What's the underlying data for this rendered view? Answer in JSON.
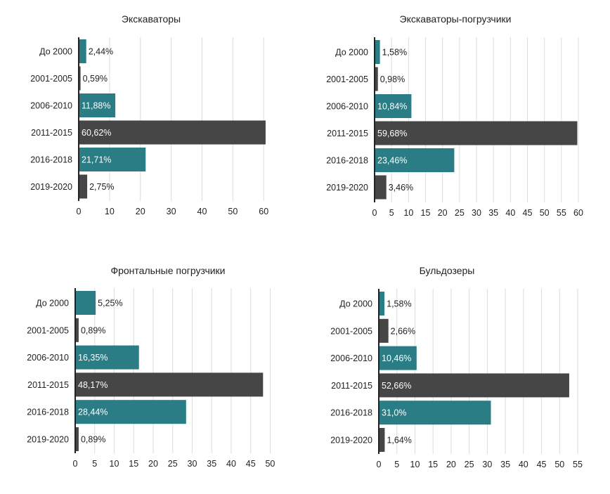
{
  "colors": {
    "teal": "#2a7d84",
    "dark": "#464646",
    "grid": "#dcdcdc",
    "axis": "#222222"
  },
  "chart_data": [
    {
      "type": "bar",
      "orientation": "horizontal",
      "title": "Экскаваторы",
      "categories": [
        "До 2000",
        "2001-2005",
        "2006-2010",
        "2011-2015",
        "2016-2018",
        "2019-2020"
      ],
      "values": [
        2.44,
        0.59,
        11.88,
        60.62,
        21.71,
        2.75
      ],
      "data_labels": [
        "2,44%",
        "0,59%",
        "11,88%",
        "60,62%",
        "21,71%",
        "2,75%"
      ],
      "xlim": [
        0,
        62
      ],
      "xticks": [
        0,
        10,
        20,
        30,
        40,
        50,
        60
      ],
      "grid": true
    },
    {
      "type": "bar",
      "orientation": "horizontal",
      "title": "Экскаваторы-погрузчики",
      "categories": [
        "До 2000",
        "2001-2005",
        "2006-2010",
        "2011-2015",
        "2016-2018",
        "2019-2020"
      ],
      "values": [
        1.58,
        0.98,
        10.84,
        59.68,
        23.46,
        3.46
      ],
      "data_labels": [
        "1,58%",
        "0,98%",
        "10,84%",
        "59,68%",
        "23,46%",
        "3,46%"
      ],
      "xlim": [
        0,
        60
      ],
      "xticks": [
        0,
        5,
        10,
        15,
        20,
        25,
        30,
        35,
        40,
        45,
        50,
        55,
        60
      ],
      "grid": true
    },
    {
      "type": "bar",
      "orientation": "horizontal",
      "title": "Фронтальные погрузчики",
      "categories": [
        "До 2000",
        "2001-2005",
        "2006-2010",
        "2011-2015",
        "2016-2018",
        "2019-2020"
      ],
      "values": [
        5.25,
        0.89,
        16.35,
        48.17,
        28.44,
        0.89
      ],
      "data_labels": [
        "5,25%",
        "0,89%",
        "16,35%",
        "48,17%",
        "28,44%",
        "0,89%"
      ],
      "xlim": [
        0,
        51
      ],
      "xticks": [
        0,
        5,
        10,
        15,
        20,
        25,
        30,
        35,
        40,
        45,
        50
      ],
      "grid": true
    },
    {
      "type": "bar",
      "orientation": "horizontal",
      "title": "Бульдозеры",
      "categories": [
        "До 2000",
        "2001-2005",
        "2006-2010",
        "2011-2015",
        "2016-2018",
        "2019-2020"
      ],
      "values": [
        1.58,
        2.66,
        10.46,
        52.66,
        31.0,
        1.64
      ],
      "data_labels": [
        "1,58%",
        "2,66%",
        "10,46%",
        "52,66%",
        "31,0%",
        "1,64%"
      ],
      "xlim": [
        0,
        55
      ],
      "xticks": [
        0,
        5,
        10,
        15,
        20,
        25,
        30,
        35,
        40,
        45,
        50,
        55
      ],
      "grid": true
    }
  ]
}
